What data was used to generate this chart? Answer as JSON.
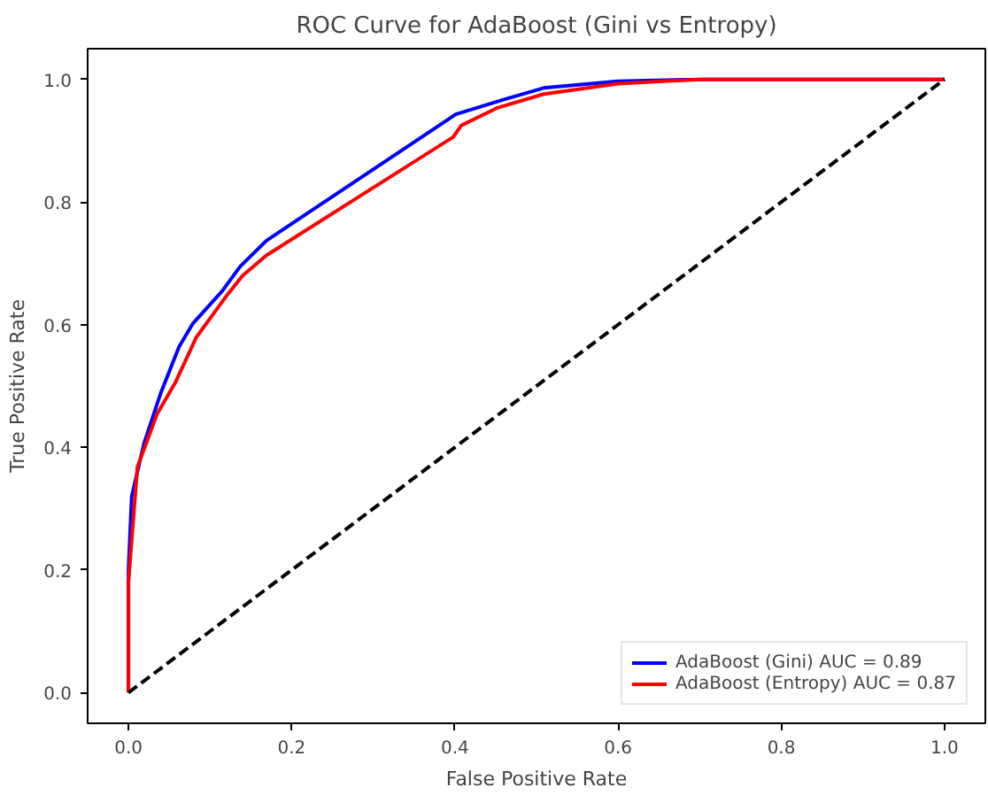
{
  "chart_data": {
    "type": "line",
    "title": "ROC Curve for AdaBoost (Gini vs Entropy)",
    "xlabel": "False Positive Rate",
    "ylabel": "True Positive Rate",
    "xlim": [
      -0.05,
      1.05
    ],
    "ylim": [
      -0.05,
      1.05
    ],
    "xticks": [
      {
        "value": 0,
        "label": "0.0"
      },
      0.2,
      0.4,
      0.6,
      0.8,
      {
        "value": 1,
        "label": "1.0"
      }
    ],
    "yticks": [
      {
        "value": 0,
        "label": "0.0"
      },
      0.2,
      0.4,
      0.6,
      0.8,
      {
        "value": 1,
        "label": "1.0"
      }
    ],
    "grid": false,
    "legend": "bottom right",
    "series": [
      {
        "name": "AdaBoost (Gini) AUC = 0.89",
        "color": "#0000ff",
        "line_style": "solid",
        "x": [
          0,
          0,
          0.004,
          0.019,
          0.04,
          0.062,
          0.079,
          0.115,
          0.137,
          0.169,
          0.401,
          0.462,
          0.509,
          0.6,
          0.7,
          1.0
        ],
        "values": [
          0,
          0.2,
          0.32,
          0.406,
          0.49,
          0.564,
          0.602,
          0.655,
          0.695,
          0.737,
          0.943,
          0.968,
          0.986,
          0.997,
          1.0,
          1.0
        ]
      },
      {
        "name": "AdaBoost (Entropy) AUC = 0.87",
        "color": "#ff0000",
        "line_style": "solid",
        "x": [
          0,
          0,
          0.011,
          0.035,
          0.058,
          0.083,
          0.119,
          0.14,
          0.169,
          0.398,
          0.408,
          0.451,
          0.509,
          0.6,
          0.7,
          1.0
        ],
        "values": [
          0,
          0.18,
          0.368,
          0.454,
          0.507,
          0.579,
          0.645,
          0.68,
          0.713,
          0.906,
          0.925,
          0.953,
          0.976,
          0.993,
          1.0,
          1.0
        ]
      },
      {
        "color": "#000000",
        "line_style": "dashed",
        "x": [
          0,
          1
        ],
        "values": [
          0,
          1
        ]
      }
    ]
  }
}
